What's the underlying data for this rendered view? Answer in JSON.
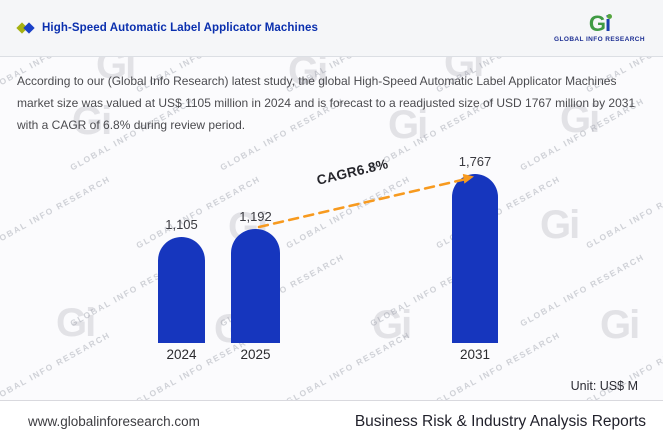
{
  "header": {
    "title": "High-Speed Automatic Label Applicator Machines",
    "logo": {
      "g": "G",
      "i": "i",
      "text": "GLOBAL INFO RESEARCH"
    }
  },
  "description": "According to our (Global Info Research) latest study, the global High-Speed Automatic Label Applicator Machines market size was valued at US$ 1105 million in 2024 and is forecast to a readjusted size of USD 1767 million by 2031 with a CAGR of 6.8% during review period.",
  "chart_data": {
    "type": "bar",
    "categories": [
      "2024",
      "2025",
      "2031"
    ],
    "values": [
      1105,
      1192,
      1767
    ],
    "value_labels": [
      "1,105",
      "1,192",
      "1,767"
    ],
    "series_name": "Global High-Speed Automatic Label Applicator Machines market size",
    "annotation": "CAGR6.8%",
    "annotation_from": "2025",
    "annotation_to": "2031",
    "unit_label": "Unit: US$ M",
    "ylim": [
      0,
      1900
    ],
    "grid": false,
    "legend": "none",
    "bar_color": "#1636be",
    "arrow_color": "#F79A1F"
  },
  "footer": {
    "website": "www.globalinforesearch.com",
    "tagline": "Business Risk & Industry Analysis Reports"
  },
  "watermark": {
    "text": "GLOBAL INFO RESEARCH",
    "mark": "Gi"
  }
}
